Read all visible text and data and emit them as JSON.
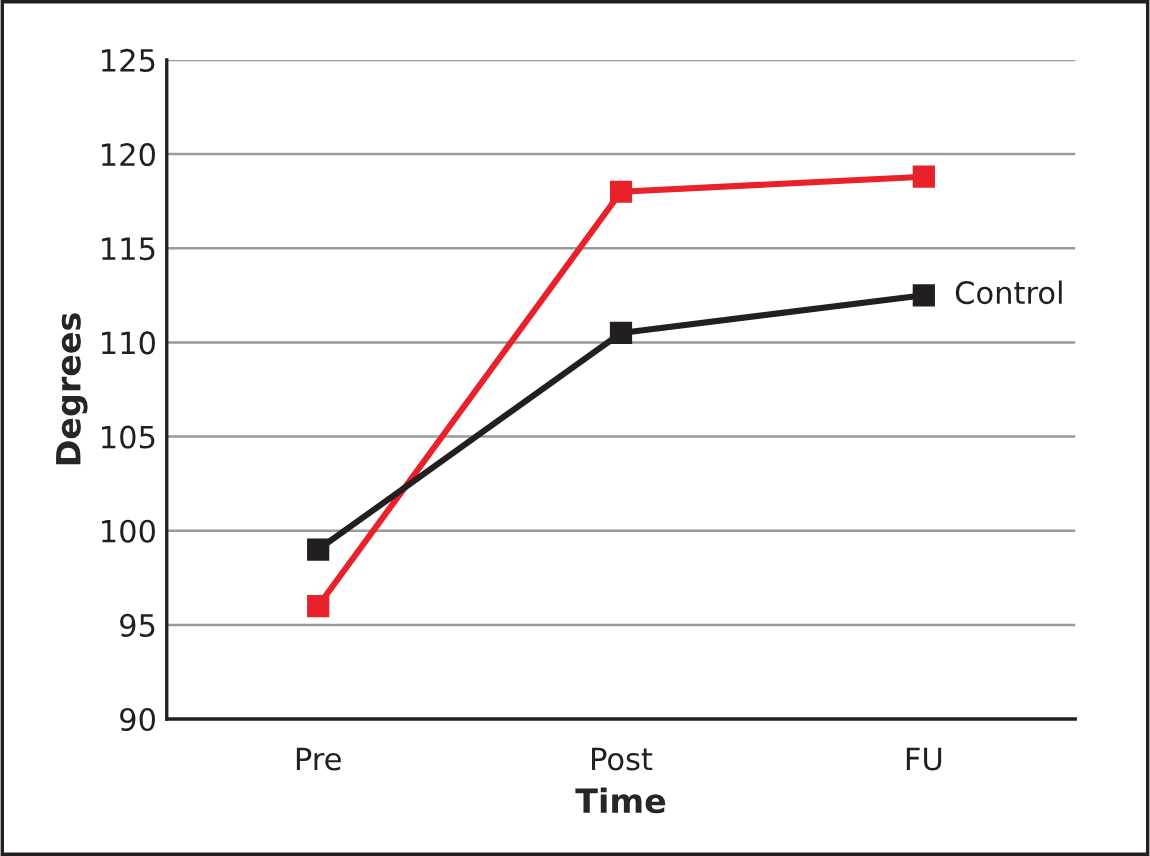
{
  "chart_data": {
    "type": "line",
    "xlabel": "Time",
    "ylabel": "Degrees",
    "categories": [
      "Pre",
      "Post",
      "FU"
    ],
    "series": [
      {
        "color": "#e8212b",
        "values": [
          96,
          118,
          118.8
        ]
      },
      {
        "name": "Control",
        "color": "#231f20",
        "values": [
          99,
          110.5,
          112.5
        ]
      }
    ],
    "ylim": [
      90,
      125
    ],
    "yticks": [
      90,
      95,
      100,
      105,
      110,
      115,
      120,
      125
    ],
    "grid": "y",
    "marker": "square",
    "line_style": "solid",
    "legend": false
  }
}
